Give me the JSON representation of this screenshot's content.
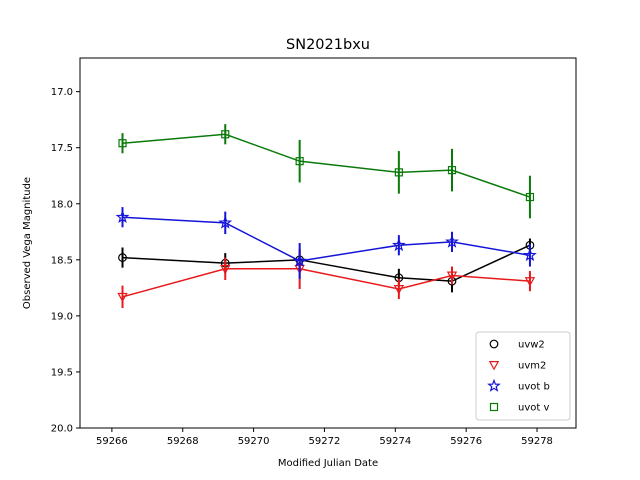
{
  "chart_data": {
    "type": "line",
    "title": "SN2021bxu",
    "xlabel": "Modified Julian Date",
    "ylabel": "Observed Vega Magnitude",
    "xlim": [
      59265.1,
      59279.1
    ],
    "ylim": [
      20.0,
      16.7
    ],
    "y_inverted": true,
    "x_ticks": [
      59266,
      59268,
      59270,
      59272,
      59274,
      59276,
      59278
    ],
    "y_ticks": [
      17.0,
      17.5,
      18.0,
      18.5,
      19.0,
      19.5,
      20.0
    ],
    "grid": false,
    "legend_position": "lower-right",
    "series": [
      {
        "name": "uvw2",
        "color": "#000000",
        "marker": "circle",
        "x": [
          59266.3,
          59269.2,
          59271.3,
          59274.1,
          59275.6,
          59277.8
        ],
        "y": [
          18.48,
          18.53,
          18.5,
          18.66,
          18.69,
          18.37
        ],
        "err": [
          0.09,
          0.09,
          0.09,
          0.08,
          0.1,
          0.06
        ]
      },
      {
        "name": "uvm2",
        "color": "#e8191b",
        "marker": "triangle-down",
        "x": [
          59266.3,
          59269.2,
          59271.3,
          59274.1,
          59275.6,
          59277.8
        ],
        "y": [
          18.83,
          18.58,
          18.58,
          18.76,
          18.64,
          18.69
        ],
        "err": [
          0.1,
          0.1,
          0.18,
          0.09,
          0.08,
          0.09
        ]
      },
      {
        "name": "uvot b",
        "color": "#1414d8",
        "marker": "star",
        "x": [
          59266.3,
          59269.2,
          59271.3,
          59274.1,
          59275.6,
          59277.8
        ],
        "y": [
          18.12,
          18.17,
          18.51,
          18.37,
          18.34,
          18.46
        ],
        "err": [
          0.09,
          0.1,
          0.16,
          0.09,
          0.09,
          0.1
        ]
      },
      {
        "name": "uvot v",
        "color": "#0a7a0a",
        "marker": "square",
        "x": [
          59266.3,
          59269.2,
          59271.3,
          59274.1,
          59275.6,
          59277.8
        ],
        "y": [
          17.46,
          17.38,
          17.62,
          17.72,
          17.7,
          17.94
        ],
        "err": [
          0.09,
          0.09,
          0.19,
          0.19,
          0.19,
          0.19
        ]
      }
    ]
  }
}
